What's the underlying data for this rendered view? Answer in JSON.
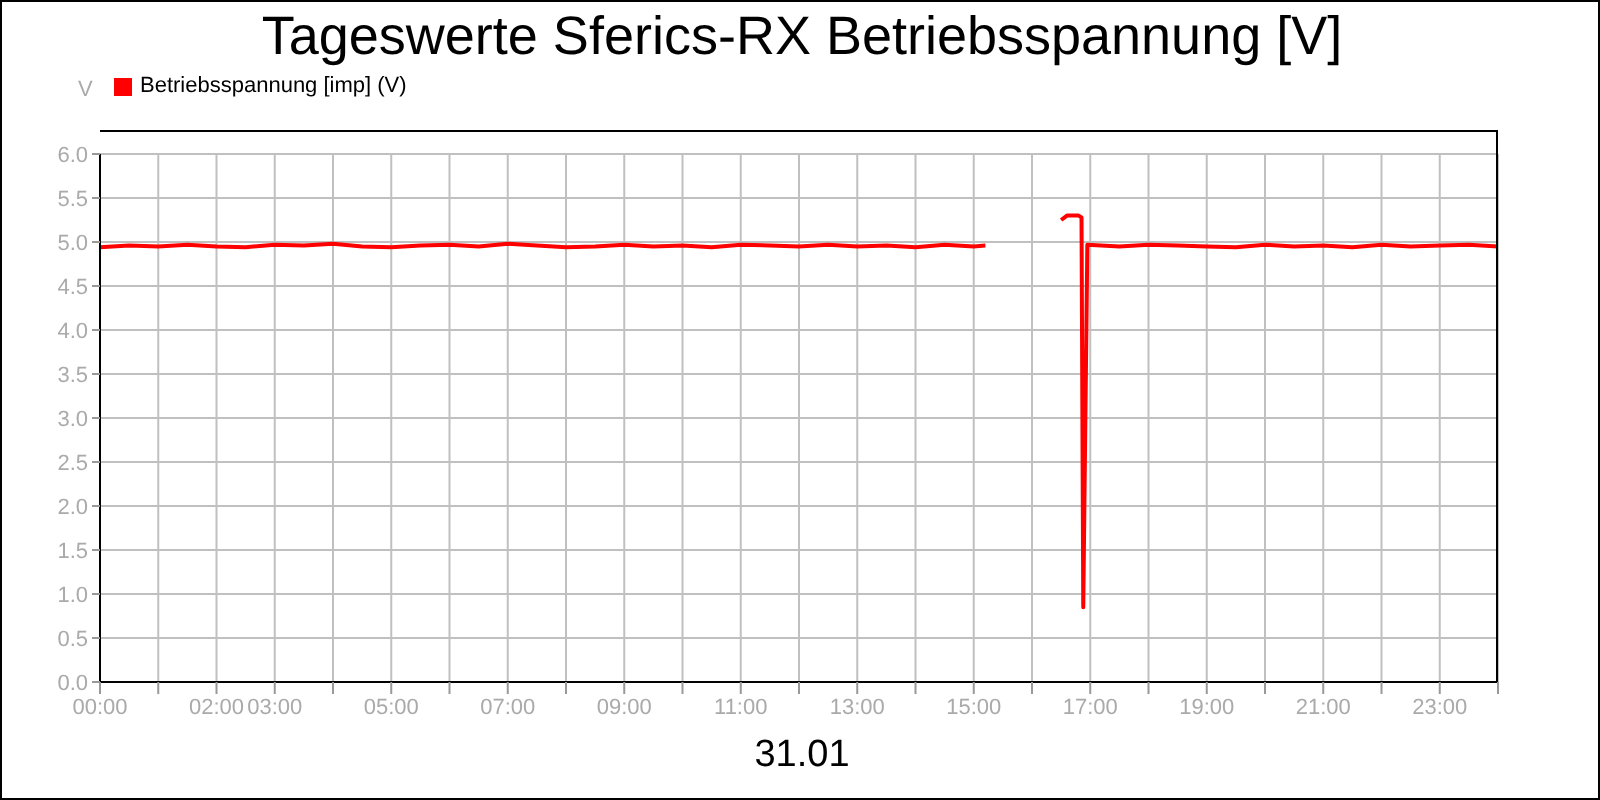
{
  "chart_data": {
    "type": "line",
    "title": "Tageswerte Sferics-RX Betriebsspannung [V]",
    "xlabel": "31.01",
    "ylabel": "V",
    "legend": "top left",
    "grid": true,
    "marker": "none",
    "line_style": "solid",
    "xlim": [
      0,
      24
    ],
    "ylim": [
      0,
      6
    ],
    "xticks": [
      {
        "value": 0,
        "label": "00:00"
      },
      {
        "value": 1,
        "label": null
      },
      {
        "value": 2,
        "label": "02:00"
      },
      {
        "value": 3,
        "label": "03:00"
      },
      {
        "value": 4,
        "label": null
      },
      {
        "value": 5,
        "label": "05:00"
      },
      {
        "value": 6,
        "label": null
      },
      {
        "value": 7,
        "label": "07:00"
      },
      {
        "value": 8,
        "label": null
      },
      {
        "value": 9,
        "label": "09:00"
      },
      {
        "value": 10,
        "label": null
      },
      {
        "value": 11,
        "label": "11:00"
      },
      {
        "value": 12,
        "label": null
      },
      {
        "value": 13,
        "label": "13:00"
      },
      {
        "value": 14,
        "label": null
      },
      {
        "value": 15,
        "label": "15:00"
      },
      {
        "value": 16,
        "label": null
      },
      {
        "value": 17,
        "label": "17:00"
      },
      {
        "value": 18,
        "label": null
      },
      {
        "value": 19,
        "label": "19:00"
      },
      {
        "value": 20,
        "label": null
      },
      {
        "value": 21,
        "label": "21:00"
      },
      {
        "value": 22,
        "label": null
      },
      {
        "value": 23,
        "label": "23:00"
      },
      {
        "value": 24,
        "label": null
      }
    ],
    "yticks": [
      {
        "value": 0,
        "label": "0.0"
      },
      0.5,
      {
        "value": 1,
        "label": "1.0"
      },
      1.5,
      {
        "value": 2,
        "label": "2.0"
      },
      2.5,
      {
        "value": 3,
        "label": "3.0"
      },
      3.5,
      {
        "value": 4,
        "label": "4.0"
      },
      4.5,
      {
        "value": 5,
        "label": "5.0"
      },
      5.5,
      {
        "value": 6,
        "label": "6.0"
      }
    ],
    "series": [
      {
        "name": "Betriebsspannung [imp] (V)",
        "color": "#ff0000",
        "x": [
          0,
          0.5,
          1,
          1.5,
          2,
          2.5,
          3,
          3.5,
          4,
          4.5,
          5,
          5.5,
          6,
          6.5,
          7,
          7.5,
          8,
          8.5,
          9,
          9.5,
          10,
          10.5,
          11,
          11.5,
          12,
          12.5,
          13,
          13.5,
          14,
          14.5,
          15,
          15.2,
          15.8,
          16.5,
          16.6,
          16.8,
          16.85,
          16.88,
          16.95,
          17.5,
          18,
          18.5,
          19,
          19.5,
          20,
          20.5,
          21,
          21.5,
          22,
          22.5,
          23,
          23.5,
          24
        ],
        "values": [
          4.94,
          4.96,
          4.95,
          4.97,
          4.95,
          4.94,
          4.97,
          4.96,
          4.98,
          4.95,
          4.94,
          4.96,
          4.97,
          4.95,
          4.98,
          4.96,
          4.94,
          4.95,
          4.97,
          4.95,
          4.96,
          4.94,
          4.97,
          4.96,
          4.95,
          4.97,
          4.95,
          4.96,
          4.94,
          4.97,
          4.95,
          4.96,
          null,
          5.25,
          5.3,
          5.3,
          5.28,
          0.85,
          4.97,
          4.95,
          4.97,
          4.96,
          4.95,
          4.94,
          4.97,
          4.95,
          4.96,
          4.94,
          4.97,
          4.95,
          4.96,
          4.97,
          4.95
        ]
      }
    ]
  }
}
